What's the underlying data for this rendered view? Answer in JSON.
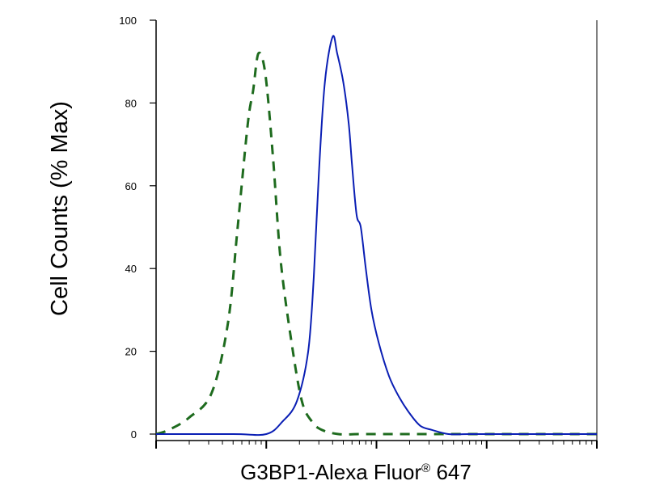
{
  "chart_data": {
    "type": "line",
    "title": "",
    "xlabel": "G3BP1-Alexa Fluor",
    "xlabel_mark": "®",
    "xlabel_suffix": " 647",
    "ylabel": "Cell Counts (% Max)",
    "x_scale": "log",
    "xlim": [
      1,
      10000
    ],
    "ylim": [
      0,
      100
    ],
    "y_ticks": [
      0,
      20,
      40,
      60,
      80,
      100
    ],
    "grid": false,
    "legend": "none",
    "series": [
      {
        "style": "dashed",
        "color": "#1e6b1e",
        "x": [
          1,
          1.3,
          2,
          3.2,
          4.5,
          5.5,
          6.8,
          7.6,
          8.5,
          9.8,
          11.5,
          13.5,
          17,
          21,
          26,
          32,
          45,
          70,
          110,
          200,
          500,
          1000,
          3000,
          10000
        ],
        "y": [
          0,
          1,
          4,
          10,
          27,
          50,
          75,
          83,
          92,
          87,
          67,
          42,
          22,
          8,
          3,
          1,
          0,
          0,
          0,
          0,
          0,
          0,
          0,
          0
        ]
      },
      {
        "style": "solid",
        "color": "#0a1eb4",
        "x": [
          1,
          5,
          10,
          14,
          19,
          24,
          27,
          30,
          34,
          40,
          44,
          50,
          56,
          60,
          66,
          72,
          80,
          90,
          105,
          130,
          160,
          200,
          250,
          320,
          450,
          700,
          1500,
          10000
        ],
        "y": [
          0,
          0,
          0,
          3,
          8,
          20,
          38,
          63,
          85,
          96,
          92,
          85,
          75,
          65,
          53,
          50,
          40,
          30,
          22,
          14,
          9,
          5,
          2,
          1,
          0,
          0,
          0,
          0
        ]
      }
    ]
  }
}
